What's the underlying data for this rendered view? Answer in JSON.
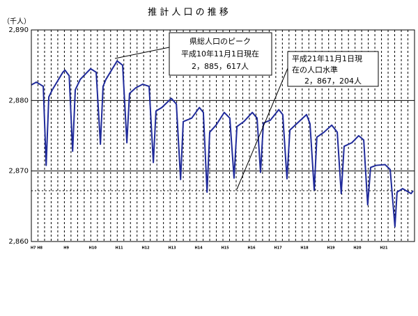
{
  "chart_data": {
    "type": "line",
    "title": "推 計 人 口 の 推 移",
    "y_axis_label": "（千人）",
    "xlim": [
      7.68,
      22.16
    ],
    "ylim": [
      2860,
      2890
    ],
    "yticks": [
      {
        "value": 2860,
        "label": "2,860"
      },
      {
        "value": 2870,
        "label": "2,870"
      },
      {
        "value": 2880,
        "label": "2,880"
      },
      {
        "value": 2890,
        "label": "2,890"
      }
    ],
    "xticks": [
      {
        "value": 7.75,
        "label": "H7"
      },
      {
        "value": 8,
        "label": "H8"
      },
      {
        "value": 9,
        "label": "H9"
      },
      {
        "value": 10,
        "label": "H10"
      },
      {
        "value": 11,
        "label": "H11"
      },
      {
        "value": 12,
        "label": "H12"
      },
      {
        "value": 13,
        "label": "H13"
      },
      {
        "value": 14,
        "label": "H14"
      },
      {
        "value": 15,
        "label": "H15"
      },
      {
        "value": 16,
        "label": "H16"
      },
      {
        "value": 17,
        "label": "H17"
      },
      {
        "value": 18,
        "label": "H18"
      },
      {
        "value": 19,
        "label": "H19"
      },
      {
        "value": 20,
        "label": "H20"
      },
      {
        "value": 21,
        "label": "H21"
      }
    ],
    "grid": true,
    "reference_line": 2867.204,
    "series": [
      {
        "color": "#1f2a9a",
        "x": [
          7.68,
          7.87,
          8.13,
          8.24,
          8.34,
          8.47,
          8.87,
          8.95,
          9.11,
          9.24,
          9.34,
          9.53,
          9.92,
          10.13,
          10.29,
          10.39,
          10.5,
          10.92,
          11.13,
          11.29,
          11.39,
          11.63,
          11.89,
          12.13,
          12.29,
          12.39,
          12.61,
          12.97,
          13.16,
          13.32,
          13.42,
          13.74,
          14.03,
          14.18,
          14.32,
          14.42,
          14.66,
          14.97,
          15.18,
          15.34,
          15.45,
          15.71,
          16.03,
          16.21,
          16.34,
          16.45,
          16.71,
          17.03,
          17.18,
          17.34,
          17.45,
          17.68,
          18.08,
          18.21,
          18.37,
          18.47,
          18.74,
          19.03,
          19.24,
          19.39,
          19.5,
          19.79,
          20.05,
          20.24,
          20.39,
          20.5,
          20.71,
          21.05,
          21.24,
          21.42,
          21.5,
          21.71,
          22.03,
          22.11
        ],
        "values": [
          2882.2,
          2882.6,
          2882,
          2870.8,
          2880.5,
          2881.5,
          2884,
          2884.3,
          2883.5,
          2872.8,
          2881.5,
          2883,
          2884.5,
          2884,
          2873.8,
          2882,
          2883,
          2885.6,
          2885,
          2874,
          2881,
          2881.8,
          2882.3,
          2882,
          2871.2,
          2878.5,
          2879,
          2880.3,
          2879.5,
          2868.8,
          2877,
          2877.5,
          2879,
          2878.3,
          2867,
          2875.5,
          2876.5,
          2878.3,
          2877.5,
          2869,
          2876.3,
          2877,
          2878.3,
          2877.5,
          2869.8,
          2876.8,
          2877.2,
          2878.7,
          2878,
          2868.9,
          2875.8,
          2876.6,
          2878,
          2876.7,
          2867.3,
          2874.8,
          2875.5,
          2876.5,
          2875.5,
          2866.8,
          2873.5,
          2874,
          2875,
          2874.4,
          2865.2,
          2870.5,
          2870.8,
          2870.9,
          2870.2,
          2862.1,
          2867,
          2867.5,
          2866.8,
          2867.2
        ]
      }
    ],
    "annotations": [
      {
        "lines": [
          "県総人口のピーク",
          "平成10年11月1日現在",
          "2，885，617人"
        ]
      },
      {
        "lines": [
          "平成21年11月1日現",
          "在の人口水準",
          "2，867，204人"
        ]
      }
    ]
  }
}
